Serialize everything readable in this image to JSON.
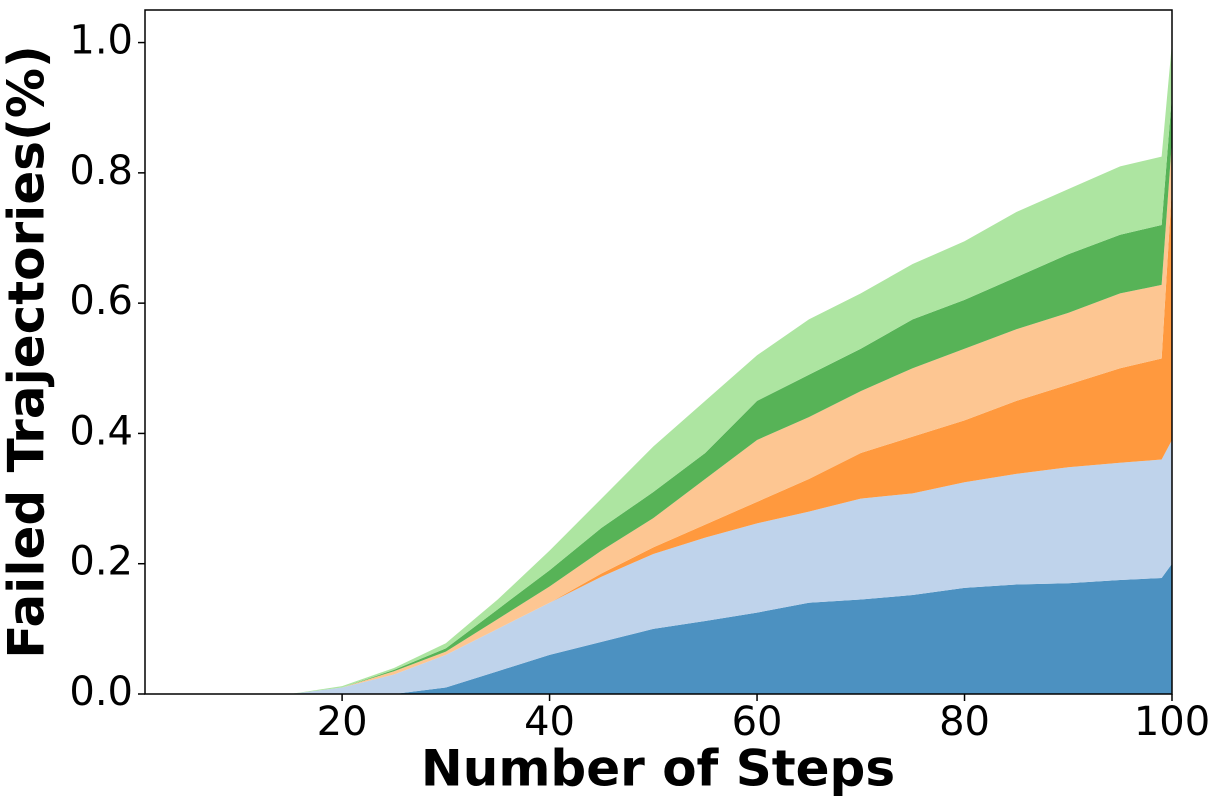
{
  "chart_data": {
    "type": "stackedarea",
    "xlabel": "Number of Steps",
    "ylabel": "Failed Trajectories(%)",
    "x": [
      1,
      5,
      10,
      15,
      20,
      25,
      30,
      35,
      40,
      45,
      50,
      55,
      60,
      65,
      70,
      75,
      80,
      85,
      90,
      95,
      99,
      100
    ],
    "series": [
      {
        "color": "#4c91c1",
        "values": [
          0,
          0,
          0,
          0,
          0,
          0,
          0.01,
          0.035,
          0.06,
          0.08,
          0.1,
          0.112,
          0.125,
          0.14,
          0.145,
          0.152,
          0.163,
          0.168,
          0.17,
          0.175,
          0.178,
          0.2
        ]
      },
      {
        "color": "#bfd3eb",
        "values": [
          0,
          0,
          0,
          0,
          0.01,
          0.03,
          0.05,
          0.065,
          0.08,
          0.1,
          0.115,
          0.128,
          0.137,
          0.14,
          0.155,
          0.156,
          0.162,
          0.17,
          0.178,
          0.18,
          0.182,
          0.19
        ]
      },
      {
        "color": "#ff993e",
        "values": [
          0,
          0,
          0,
          0,
          0,
          0,
          0,
          0,
          0,
          0.005,
          0.01,
          0.02,
          0.033,
          0.05,
          0.07,
          0.087,
          0.095,
          0.112,
          0.127,
          0.145,
          0.155,
          0.39
        ]
      },
      {
        "color": "#fdc692",
        "values": [
          0,
          0,
          0,
          0,
          0,
          0.005,
          0.005,
          0.015,
          0.025,
          0.035,
          0.045,
          0.07,
          0.095,
          0.095,
          0.095,
          0.105,
          0.11,
          0.11,
          0.11,
          0.115,
          0.113,
          0.07
        ]
      },
      {
        "color": "#57b357",
        "values": [
          0,
          0,
          0,
          0,
          0,
          0.002,
          0.005,
          0.015,
          0.025,
          0.035,
          0.04,
          0.04,
          0.06,
          0.065,
          0.065,
          0.075,
          0.075,
          0.08,
          0.09,
          0.09,
          0.092,
          0.07
        ]
      },
      {
        "color": "#ade5a1",
        "values": [
          0,
          0,
          0,
          0,
          0.002,
          0.003,
          0.008,
          0.015,
          0.03,
          0.045,
          0.07,
          0.08,
          0.07,
          0.085,
          0.085,
          0.085,
          0.09,
          0.1,
          0.1,
          0.105,
          0.105,
          0.08
        ]
      }
    ],
    "xlim": [
      1,
      100
    ],
    "xticks": [
      20,
      40,
      60,
      80,
      100
    ],
    "ylim": [
      0,
      1.05
    ],
    "yticks": [
      {
        "value": 0,
        "label": "0.0"
      },
      0.2,
      0.4,
      0.6,
      0.8,
      {
        "value": 1,
        "label": "1.0"
      }
    ]
  }
}
